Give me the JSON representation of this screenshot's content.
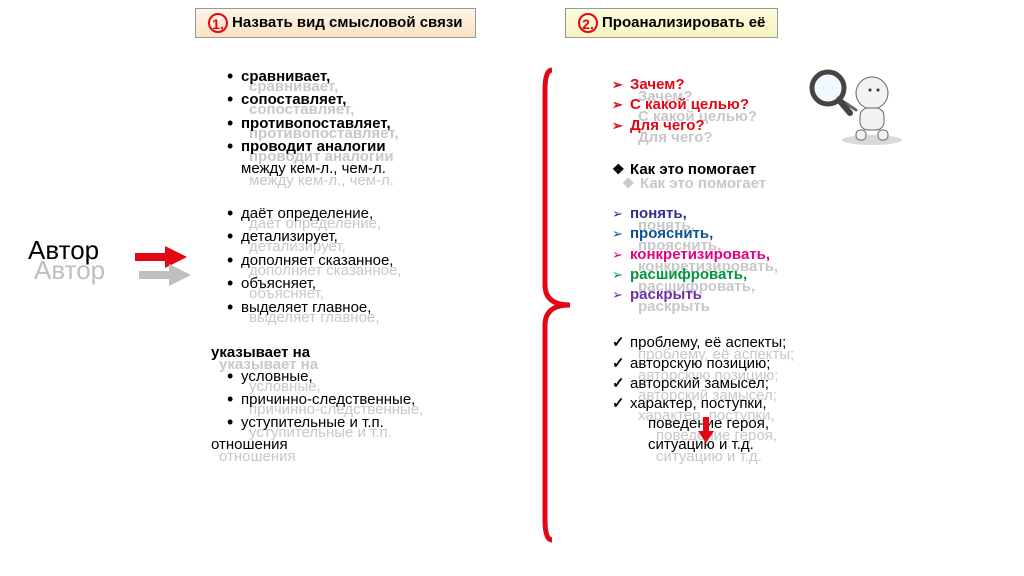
{
  "headers": {
    "h1_num": "1.",
    "h1_text": "Назвать вид смысловой связи",
    "h2_num": "2.",
    "h2_text": "Проанализировать её"
  },
  "author": "Автор",
  "left": {
    "group1": [
      "сравнивает,",
      "сопоставляет,",
      "противопоставляет,",
      "проводит аналогии",
      "между кем-л., чем-л."
    ],
    "group2": [
      "даёт определение,",
      "детализирует,",
      "дополняет сказанное,",
      "объясняет,",
      "выделяет главное,"
    ],
    "g3_head": "указывает на",
    "group3": [
      "условные,",
      "причинно-следственные,",
      "уступительные и т.п."
    ],
    "g3_tail": "отношения"
  },
  "right": {
    "q": [
      {
        "t": "Зачем?",
        "c": "#e30613"
      },
      {
        "t": "С какой целью?",
        "c": "#e30613"
      },
      {
        "t": "Для чего?",
        "c": "#e30613"
      }
    ],
    "how": "Как это помогает",
    "verbs": [
      {
        "t": "понять,",
        "c": "#2e3192"
      },
      {
        "t": "прояснить,",
        "c": "#0b5394"
      },
      {
        "t": "конкретизировать,",
        "c": "#e6007e"
      },
      {
        "t": "расшифровать,",
        "c": "#009640"
      },
      {
        "t": "раскрыть",
        "c": "#7030a0"
      }
    ],
    "targets": [
      "проблему, её аспекты;",
      "авторскую позицию;",
      "авторский замысел;",
      "характер, поступки,",
      "поведение героя,",
      "ситуацию и т.д."
    ]
  },
  "colors": {
    "red": "#e30613",
    "gray": "#bfbfbf",
    "bracket": "#e30613"
  }
}
